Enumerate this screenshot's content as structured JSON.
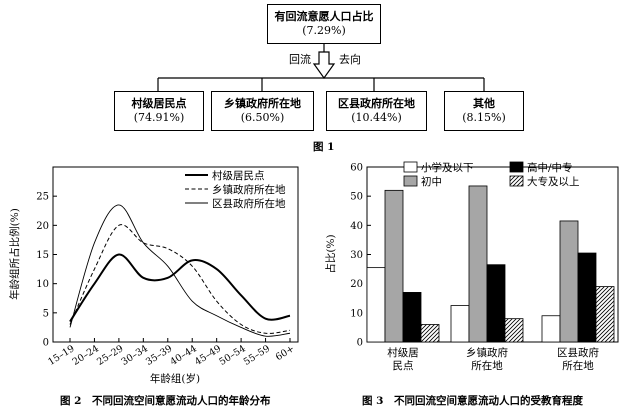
{
  "fig1": {
    "top_box": {
      "label": "有回流意愿人口占比",
      "value": "(7.29%)"
    },
    "arrow_left": "回流",
    "arrow_right": "去向",
    "boxes": [
      {
        "label": "村级居民点",
        "value": "(74.91%)"
      },
      {
        "label": "乡镇政府所在地",
        "value": "(6.50%)"
      },
      {
        "label": "区县政府所在地",
        "value": "(10.44%)"
      },
      {
        "label": "其他",
        "value": "(8.15%)"
      }
    ],
    "caption": "图 1"
  },
  "chart_data": [
    {
      "type": "line",
      "title": "",
      "xlabel": "年龄组(岁)",
      "ylabel": "年龄组所占比例(%)",
      "categories": [
        "15–19",
        "20–24",
        "25–29",
        "30–34",
        "35–39",
        "40–44",
        "45–49",
        "50–54",
        "55–59",
        "60+"
      ],
      "ylim": [
        0,
        30
      ],
      "yticks": [
        0,
        5,
        10,
        15,
        20,
        25
      ],
      "series": [
        {
          "name": "村级居民点",
          "style": "solid-thick",
          "values": [
            3.5,
            10,
            15,
            11,
            11,
            14,
            12.5,
            8,
            4,
            4.5
          ]
        },
        {
          "name": "乡镇政府所在地",
          "style": "dashed",
          "values": [
            3,
            12.5,
            20,
            17,
            16,
            13,
            7,
            3,
            1.5,
            2
          ]
        },
        {
          "name": "区县政府所在地",
          "style": "solid-thin",
          "values": [
            2.5,
            17,
            23.5,
            17,
            13,
            7,
            4.5,
            2.5,
            1,
            1.5
          ]
        }
      ],
      "caption": "图 2　不同回流空间意愿流动人口的年龄分布"
    },
    {
      "type": "bar",
      "title": "",
      "xlabel": "",
      "ylabel": "占比(%)",
      "categories": [
        "村级居民点",
        "乡镇政府所在地",
        "区县政府所在地"
      ],
      "category_lines": [
        [
          "村级居",
          "民点"
        ],
        [
          "乡镇政府",
          "所在地"
        ],
        [
          "区县政府",
          "所在地"
        ]
      ],
      "ylim": [
        0,
        60
      ],
      "yticks": [
        0,
        10,
        20,
        30,
        40,
        50,
        60
      ],
      "series": [
        {
          "name": "小学及以下",
          "fill": "#ffffff",
          "values": [
            25.5,
            12.5,
            9
          ]
        },
        {
          "name": "初中",
          "fill": "#a6a6a6",
          "values": [
            52,
            53.5,
            41.5
          ]
        },
        {
          "name": "高中/中专",
          "fill": "#000000",
          "values": [
            17,
            26.5,
            30.5
          ]
        },
        {
          "name": "大专及以上",
          "fill": "hatch",
          "values": [
            6,
            8,
            19
          ]
        }
      ],
      "caption": "图 3　不同回流空间意愿流动人口的受教育程度"
    }
  ]
}
